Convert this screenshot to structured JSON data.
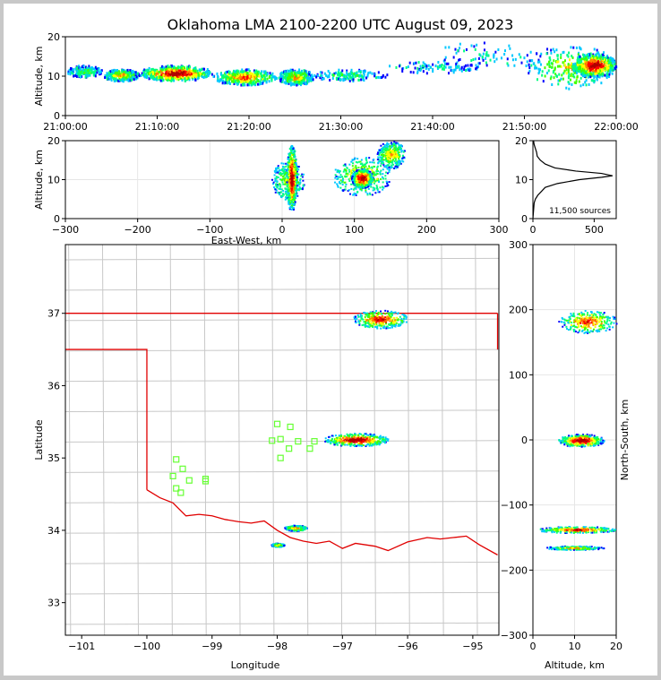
{
  "title": "Oklahoma LMA 2100-2200 UTC August 09, 2023",
  "colors": {
    "border": "#c8c8c8",
    "county_lines": "#c8c8c8",
    "state_lines": "#e00000",
    "stations": "#66ff33",
    "palette": [
      "#0000ff",
      "#00c8ff",
      "#00ff80",
      "#40ff00",
      "#ffff00",
      "#ff8000",
      "#ff0000",
      "#b00000"
    ]
  },
  "chart_data": [
    {
      "id": "time_height",
      "type": "scatter",
      "xlabel": "",
      "ylabel": "Altitude, km",
      "xticks": [
        "21:00:00",
        "21:10:00",
        "21:20:00",
        "21:30:00",
        "21:40:00",
        "21:50:00",
        "22:00:00"
      ],
      "xlim": [
        0,
        60
      ],
      "ylim": [
        0,
        20
      ],
      "yticks": [
        "0",
        "10",
        "20"
      ],
      "clusters": [
        {
          "t": [
            0,
            4
          ],
          "alt": [
            10,
            13
          ],
          "density": 0.3
        },
        {
          "t": [
            4,
            8
          ],
          "alt": [
            9,
            12
          ],
          "density": 0.55
        },
        {
          "t": [
            8,
            16
          ],
          "alt": [
            9,
            13
          ],
          "density": 0.95
        },
        {
          "t": [
            16,
            23
          ],
          "alt": [
            8,
            12
          ],
          "density": 0.7
        },
        {
          "t": [
            23,
            27
          ],
          "alt": [
            8,
            12
          ],
          "density": 0.55
        },
        {
          "t": [
            27,
            35
          ],
          "alt": [
            9,
            12
          ],
          "density": 0.25
        },
        {
          "t": [
            35,
            45
          ],
          "alt": [
            11,
            14
          ],
          "density": 0.15
        },
        {
          "t": [
            40,
            52
          ],
          "alt": [
            12,
            19
          ],
          "density": 0.12
        },
        {
          "t": [
            50,
            60
          ],
          "alt": [
            7,
            18
          ],
          "density": 0.5
        },
        {
          "t": [
            55,
            60
          ],
          "alt": [
            10,
            16
          ],
          "density": 0.95
        }
      ]
    },
    {
      "id": "ew_height",
      "type": "scatter",
      "xlabel": "East-West, km",
      "ylabel": "Altitude, km",
      "xlim": [
        -300,
        300
      ],
      "ylim": [
        0,
        20
      ],
      "xticks": [
        "−300",
        "−200",
        "−100",
        "0",
        "100",
        "200",
        "300"
      ],
      "yticks": [
        "0",
        "10",
        "20"
      ],
      "clusters": [
        {
          "x": [
            -15,
            30
          ],
          "alt": [
            5,
            15
          ],
          "density": 0.45
        },
        {
          "x": [
            5,
            20
          ],
          "alt": [
            2,
            19
          ],
          "density": 0.95
        },
        {
          "x": [
            70,
            150
          ],
          "alt": [
            6,
            16
          ],
          "density": 0.6
        },
        {
          "x": [
            95,
            125
          ],
          "alt": [
            8,
            13
          ],
          "density": 1.0
        },
        {
          "x": [
            130,
            170
          ],
          "alt": [
            13,
            20
          ],
          "density": 0.55
        }
      ]
    },
    {
      "id": "alt_histogram",
      "type": "line",
      "xlabel": "",
      "ylabel": "",
      "xlim": [
        0,
        680
      ],
      "ylim": [
        0,
        20
      ],
      "xticks": [
        "0",
        "500"
      ],
      "yticks": [
        "0",
        "10",
        "20"
      ],
      "annotation": "11,500 sources",
      "points": [
        [
          0,
          0
        ],
        [
          5,
          2
        ],
        [
          10,
          4
        ],
        [
          20,
          5
        ],
        [
          40,
          6
        ],
        [
          70,
          7
        ],
        [
          100,
          8
        ],
        [
          200,
          9
        ],
        [
          380,
          10
        ],
        [
          560,
          10.6
        ],
        [
          650,
          11
        ],
        [
          560,
          11.6
        ],
        [
          350,
          12.2
        ],
        [
          180,
          13
        ],
        [
          100,
          14
        ],
        [
          60,
          15
        ],
        [
          35,
          16
        ],
        [
          30,
          17
        ],
        [
          20,
          18
        ],
        [
          10,
          19
        ],
        [
          5,
          20
        ]
      ]
    },
    {
      "id": "plan_view",
      "type": "scatter",
      "xlabel": "Longitude",
      "ylabel": "Latitude",
      "xlim": [
        -101.25,
        -94.6
      ],
      "ylim": [
        32.55,
        37.95
      ],
      "xticks": [
        "−101",
        "−100",
        "−99",
        "−98",
        "−97",
        "−96",
        "−95"
      ],
      "yticks": [
        "33",
        "34",
        "35",
        "36",
        "37"
      ],
      "clusters": [
        {
          "lon": [
            -96.85,
            -96.0
          ],
          "lat": [
            36.8,
            37.05
          ],
          "density": 0.85
        },
        {
          "lon": [
            -97.3,
            -96.3
          ],
          "lat": [
            35.17,
            35.35
          ],
          "density": 1.0
        },
        {
          "lon": [
            -97.9,
            -97.55
          ],
          "lat": [
            34.0,
            34.08
          ],
          "density": 0.6
        },
        {
          "lon": [
            -98.1,
            -97.9
          ],
          "lat": [
            33.78,
            33.83
          ],
          "density": 0.5
        }
      ],
      "stations": [
        [
          -98.0,
          35.47
        ],
        [
          -97.8,
          35.43
        ],
        [
          -98.08,
          35.24
        ],
        [
          -97.95,
          35.26
        ],
        [
          -97.68,
          35.23
        ],
        [
          -97.82,
          35.13
        ],
        [
          -97.5,
          35.13
        ],
        [
          -97.43,
          35.23
        ],
        [
          -97.95,
          35.0
        ],
        [
          -99.55,
          34.98
        ],
        [
          -99.45,
          34.85
        ],
        [
          -99.6,
          34.75
        ],
        [
          -99.35,
          34.69
        ],
        [
          -99.1,
          34.71
        ],
        [
          -99.1,
          34.68
        ],
        [
          -99.55,
          34.58
        ],
        [
          -99.48,
          34.52
        ]
      ]
    },
    {
      "id": "ns_height",
      "type": "scatter",
      "xlabel": "Altitude, km",
      "ylabel": "North-South, km",
      "xlim": [
        0,
        20
      ],
      "ylim": [
        -300,
        300
      ],
      "xticks": [
        "0",
        "10",
        "20"
      ],
      "yticks": [
        "−300",
        "−200",
        "−100",
        "0",
        "100",
        "200",
        "300"
      ],
      "clusters": [
        {
          "alt": [
            6,
            20
          ],
          "ns": [
            165,
            200
          ],
          "density": 0.75
        },
        {
          "alt": [
            6,
            17
          ],
          "ns": [
            -10,
            10
          ],
          "density": 1.0
        },
        {
          "alt": [
            1,
            20
          ],
          "ns": [
            -142,
            -132
          ],
          "density": 0.85
        },
        {
          "alt": [
            3,
            17
          ],
          "ns": [
            -168,
            -162
          ],
          "density": 0.6
        }
      ]
    }
  ]
}
